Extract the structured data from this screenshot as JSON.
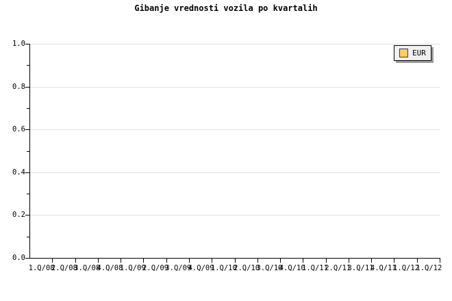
{
  "title": "Gibanje vrednosti vozila po kvartalih",
  "legend": {
    "position": "top-right",
    "items": [
      {
        "label": "EUR",
        "swatch_color": "#ffcc66"
      }
    ]
  },
  "colors": {
    "background": "#ffffff",
    "axis": "#000000",
    "gridline": "#e0e0e0",
    "text": "#000000",
    "legend_bg": "#f0f0f0",
    "legend_border": "#000000",
    "legend_shadow": "#9a9a9a",
    "eur_swatch": "#ffcc66"
  },
  "chart_data": {
    "type": "line",
    "title": "Gibanje vrednosti vozila po kvartalih",
    "categories": [
      "1.Q/08",
      "2.Q/08",
      "3.Q/08",
      "4.Q/08",
      "1.Q/09",
      "2.Q/09",
      "3.Q/09",
      "4.Q/09",
      "1.Q/10",
      "2.Q/10",
      "3.Q/10",
      "4.Q/10",
      "1.Q/11",
      "2.Q/11",
      "3.Q/11",
      "4.Q/11",
      "1.Q/12",
      "1.Q/12"
    ],
    "series": [
      {
        "name": "EUR",
        "values": []
      }
    ],
    "xlabel": "",
    "ylabel": "",
    "ylim": [
      0.0,
      1.0
    ],
    "yticks": [
      {
        "value": 0.0,
        "label": "0.0"
      },
      {
        "value": 0.2,
        "label": "0.2"
      },
      {
        "value": 0.4,
        "label": "0.4"
      },
      {
        "value": 0.6,
        "label": "0.6"
      },
      {
        "value": 0.8,
        "label": "0.8"
      },
      {
        "value": 1.0,
        "label": "1.0"
      }
    ],
    "yticks_minor": [
      0.1,
      0.3,
      0.5,
      0.7,
      0.9
    ],
    "grid": "horizontal",
    "legend_position": "top-right"
  }
}
